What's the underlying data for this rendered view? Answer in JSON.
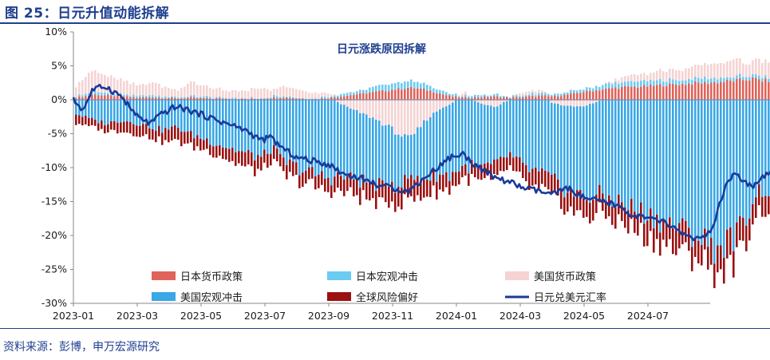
{
  "figure_title": "图 25：日元升值动能拆解",
  "source": "资料来源：彭博，申万宏源研究",
  "chart_data": {
    "type": "bar",
    "title": "日元涨跌原因拆解",
    "ylim": [
      -30,
      10
    ],
    "yticks": [
      "10%",
      "5%",
      "0%",
      "-5%",
      "-10%",
      "-15%",
      "-20%",
      "-25%",
      "-30%"
    ],
    "ytick_values": [
      10,
      5,
      0,
      -5,
      -10,
      -15,
      -20,
      -25,
      -30
    ],
    "xticks": [
      "2023-01",
      "2023-03",
      "2023-05",
      "2023-07",
      "2023-09",
      "2023-11",
      "2024-01",
      "2024-03",
      "2024-05",
      "2024-07"
    ],
    "grid": false,
    "legend_position": "bottom-inside",
    "legend": [
      {
        "name": "日本货币政策",
        "color": "#e0635a",
        "kind": "bar"
      },
      {
        "name": "日本宏观冲击",
        "color": "#6ccbf2",
        "kind": "bar"
      },
      {
        "name": "美国货币政策",
        "color": "#f5d3d3",
        "kind": "bar"
      },
      {
        "name": "美国宏观冲击",
        "color": "#3aa7e6",
        "kind": "bar"
      },
      {
        "name": "全球风险偏好",
        "color": "#9b1111",
        "kind": "bar"
      },
      {
        "name": "日元兑美元汇率",
        "color": "#1a3a9a",
        "kind": "line"
      }
    ],
    "anchor_times": [
      0,
      0.3,
      0.6,
      1.0,
      1.5,
      2.0,
      2.4,
      2.8,
      3.2,
      3.6,
      4.2,
      4.8,
      5.4,
      5.9,
      6.2,
      6.5,
      7.0,
      7.5,
      8.0,
      8.5,
      9.0,
      9.5,
      10.0,
      10.5,
      11.0,
      11.4,
      11.8,
      12.2,
      12.7,
      13.2,
      13.6,
      14.1,
      14.6,
      15.0,
      15.5,
      16.0,
      16.5,
      17.0,
      17.5,
      18.0,
      18.5,
      19.0,
      19.5,
      19.8,
      20.1,
      20.4,
      20.7,
      21.0,
      21.3,
      21.6,
      21.9,
      22.2
    ],
    "series": [
      {
        "name": "日本货币政策",
        "values": [
          0.3,
          0.5,
          0.8,
          0.6,
          0.5,
          0.3,
          0.4,
          0.3,
          0.2,
          0.3,
          0.2,
          0.2,
          0.1,
          0.2,
          0.3,
          0.4,
          0.2,
          0.1,
          0.3,
          0.6,
          0.9,
          1.2,
          1.5,
          1.8,
          1.5,
          1.0,
          0.5,
          0.3,
          0.4,
          0.5,
          0.3,
          0.4,
          0.6,
          0.5,
          0.8,
          1.2,
          1.5,
          1.8,
          1.9,
          2.0,
          2.2,
          2.3,
          2.5,
          2.5,
          2.6,
          2.7,
          2.8,
          3.0,
          3.1,
          2.8,
          2.9,
          2.8
        ]
      },
      {
        "name": "日本宏观冲击",
        "values": [
          0.2,
          0.3,
          0.5,
          0.4,
          0.3,
          0.2,
          0.3,
          0.2,
          0.2,
          0.2,
          0.2,
          0.1,
          0.1,
          0.1,
          0.2,
          0.2,
          0.1,
          0.1,
          0.2,
          0.4,
          0.5,
          0.8,
          1.0,
          1.0,
          0.8,
          0.5,
          0.3,
          0.2,
          0.3,
          0.3,
          0.2,
          0.3,
          0.4,
          0.3,
          0.4,
          0.5,
          0.6,
          0.7,
          0.8,
          0.8,
          0.7,
          0.6,
          0.6,
          0.7,
          0.6,
          0.5,
          0.5,
          0.6,
          0.6,
          0.5,
          0.5,
          0.5
        ]
      },
      {
        "name": "美国货币政策",
        "values": [
          1.5,
          2.5,
          3.0,
          2.5,
          2.0,
          1.5,
          2.0,
          1.5,
          1.0,
          2.0,
          1.5,
          1.0,
          1.2,
          1.5,
          0.8,
          1.5,
          1.2,
          0.8,
          0.5,
          -1.0,
          -2.0,
          -3.0,
          -4.5,
          -6.0,
          -3.0,
          -1.5,
          -0.5,
          0.5,
          -0.5,
          -1.0,
          0.0,
          0.5,
          0.5,
          -0.5,
          -1.0,
          -1.0,
          0.0,
          0.5,
          1.0,
          1.0,
          1.5,
          1.5,
          2.0,
          2.0,
          2.0,
          2.5,
          2.5,
          2.0,
          2.0,
          2.5,
          2.5,
          3.0
        ]
      },
      {
        "name": "美国宏观冲击",
        "values": [
          -2.0,
          -2.5,
          -3.0,
          -3.5,
          -3.0,
          -3.5,
          -4.0,
          -4.5,
          -4.0,
          -5.0,
          -6.0,
          -7.0,
          -8.0,
          -8.5,
          -7.0,
          -9.0,
          -10.0,
          -11.0,
          -11.5,
          -10.5,
          -10.0,
          -9.5,
          -8.0,
          -6.0,
          -8.5,
          -9.5,
          -10.5,
          -10.0,
          -9.5,
          -8.5,
          -8.0,
          -10.0,
          -11.0,
          -11.5,
          -12.5,
          -13.5,
          -14.0,
          -15.0,
          -16.0,
          -17.0,
          -18.0,
          -19.0,
          -20.0,
          -21.0,
          -22.0,
          -21.0,
          -20.0,
          -18.0,
          -14.0,
          -13.0,
          -14.0,
          -13.5
        ]
      },
      {
        "name": "全球风险偏好",
        "values": [
          -1.5,
          -1.2,
          -1.0,
          -1.2,
          -1.5,
          -1.8,
          -1.6,
          -1.8,
          -2.0,
          -1.8,
          -1.5,
          -1.8,
          -2.0,
          -2.2,
          -1.8,
          -2.0,
          -2.0,
          -1.8,
          -2.0,
          -2.3,
          -2.5,
          -2.5,
          -3.0,
          -3.0,
          -2.8,
          -2.5,
          -2.0,
          -1.8,
          -2.0,
          -2.2,
          -2.0,
          -2.3,
          -2.5,
          -2.5,
          -2.8,
          -2.8,
          -2.8,
          -3.0,
          -3.2,
          -3.5,
          -3.5,
          -3.5,
          -3.2,
          -3.5,
          -3.8,
          -4.0,
          -3.8,
          -3.5,
          -3.0,
          -2.8,
          -3.0,
          -3.2
        ]
      },
      {
        "name": "日元兑美元汇率",
        "values": [
          0.0,
          -1.5,
          1.5,
          2.0,
          0.5,
          -2.5,
          -3.5,
          -2.0,
          -1.0,
          -1.5,
          -2.5,
          -3.5,
          -4.5,
          -6.0,
          -5.5,
          -7.0,
          -8.5,
          -9.0,
          -9.5,
          -11.0,
          -11.5,
          -12.5,
          -13.0,
          -13.5,
          -11.5,
          -10.0,
          -8.5,
          -8.0,
          -10.0,
          -11.5,
          -12.0,
          -13.0,
          -13.5,
          -14.0,
          -13.0,
          -14.5,
          -15.0,
          -15.5,
          -17.0,
          -17.5,
          -18.0,
          -19.5,
          -20.5,
          -20.5,
          -18.0,
          -13.0,
          -11.0,
          -12.0,
          -13.0,
          -11.5,
          -10.5,
          -10.5
        ]
      }
    ]
  }
}
